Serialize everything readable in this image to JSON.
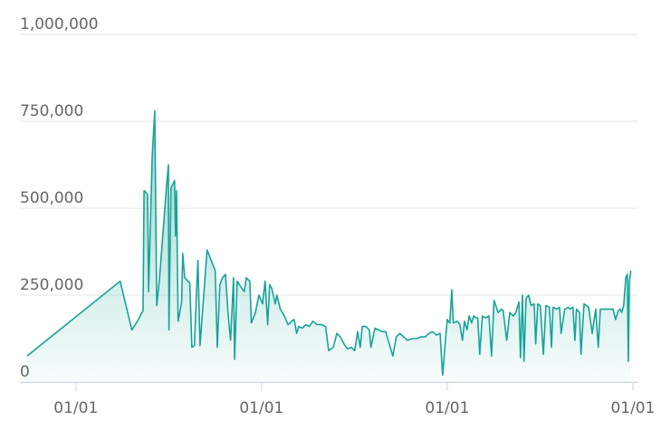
{
  "chart_data": {
    "type": "area",
    "series": [
      {
        "color": "#17a398",
        "x": [
          0,
          183,
          206,
          217,
          224,
          228,
          230,
          231,
          237,
          239,
          246,
          251,
          255,
          260,
          274,
          278,
          279,
          283,
          287,
          290,
          292,
          294,
          297,
          304,
          306,
          310,
          320,
          324,
          329,
          333,
          336,
          340,
          354,
          370,
          374,
          379,
          384,
          390,
          395,
          400,
          406,
          408,
          413,
          420,
          427,
          431,
          438,
          441,
          449,
          456,
          463,
          468,
          473,
          477,
          481,
          488,
          491,
          498,
          506,
          513,
          520,
          525,
          530,
          534,
          541,
          548,
          555,
          562,
          570,
          579,
          587,
          593,
          602,
          609,
          616,
          623,
          630,
          637,
          644,
          650,
          655,
          659,
          666,
          673,
          676,
          684,
          691,
          698,
          705,
          712,
          719,
          726,
          733,
          740,
          748,
          757,
          765,
          774,
          783,
          790,
          797,
          805,
          812,
          817,
          826,
          831,
          835,
          838,
          846,
          851,
          856,
          860,
          865,
          869,
          874,
          878,
          883,
          886,
          890,
          895,
          901,
          908,
          913,
          918,
          926,
          933,
          936,
          943,
          949,
          956,
          961,
          967,
          970,
          974,
          977,
          981,
          986,
          991,
          997,
          1000,
          1004,
          1009,
          1015,
          1020,
          1027,
          1031,
          1034,
          1041,
          1047,
          1050,
          1057,
          1064,
          1068,
          1073,
          1077,
          1080,
          1086,
          1089,
          1095,
          1104,
          1111,
          1118,
          1123,
          1127,
          1136,
          1143,
          1152,
          1157,
          1162,
          1166,
          1169,
          1173,
          1177,
          1180,
          1182,
          1184,
          1187
        ],
        "values": [
          75000,
          290000,
          150000,
          175000,
          195000,
          205000,
          550000,
          550000,
          540000,
          260000,
          650000,
          780000,
          220000,
          290000,
          560000,
          625000,
          150000,
          560000,
          570000,
          580000,
          420000,
          550000,
          175000,
          230000,
          370000,
          300000,
          285000,
          100000,
          105000,
          250000,
          350000,
          105000,
          380000,
          320000,
          100000,
          280000,
          300000,
          310000,
          200000,
          120000,
          300000,
          65000,
          290000,
          275000,
          260000,
          300000,
          290000,
          170000,
          200000,
          250000,
          225000,
          290000,
          165000,
          280000,
          270000,
          225000,
          250000,
          210000,
          190000,
          165000,
          175000,
          180000,
          140000,
          160000,
          155000,
          165000,
          160000,
          175000,
          165000,
          165000,
          160000,
          90000,
          100000,
          140000,
          130000,
          110000,
          95000,
          100000,
          90000,
          145000,
          100000,
          160000,
          160000,
          150000,
          100000,
          155000,
          150000,
          145000,
          145000,
          110000,
          75000,
          130000,
          140000,
          130000,
          120000,
          125000,
          125000,
          130000,
          130000,
          140000,
          145000,
          135000,
          140000,
          20000,
          180000,
          170000,
          265000,
          170000,
          175000,
          165000,
          120000,
          175000,
          150000,
          190000,
          170000,
          190000,
          185000,
          185000,
          80000,
          190000,
          185000,
          190000,
          75000,
          235000,
          200000,
          210000,
          205000,
          120000,
          200000,
          190000,
          200000,
          230000,
          70000,
          250000,
          60000,
          240000,
          250000,
          220000,
          225000,
          110000,
          225000,
          220000,
          80000,
          220000,
          215000,
          100000,
          215000,
          210000,
          215000,
          140000,
          210000,
          215000,
          210000,
          215000,
          120000,
          210000,
          200000,
          80000,
          225000,
          215000,
          140000,
          210000,
          100000,
          210000,
          210000,
          210000,
          210000,
          180000,
          205000,
          210000,
          200000,
          220000,
          300000,
          310000,
          60000,
          290000,
          320000
        ]
      }
    ],
    "xlim": [
      -14,
      1200
    ],
    "xticks": [
      {
        "value": 96,
        "label": "01/01"
      },
      {
        "value": 461,
        "label": "01/01"
      },
      {
        "value": 826,
        "label": "01/01"
      },
      {
        "value": 1191,
        "label": "01/01"
      }
    ],
    "ylim": [
      0,
      1000000
    ],
    "yticks": [
      0,
      {
        "value": 250000,
        "label": "250,000"
      },
      {
        "value": 500000,
        "label": "500,000"
      },
      {
        "value": 750000,
        "label": "750,000"
      },
      {
        "value": 1000000,
        "label": "1,000,000"
      }
    ],
    "grid": true
  }
}
